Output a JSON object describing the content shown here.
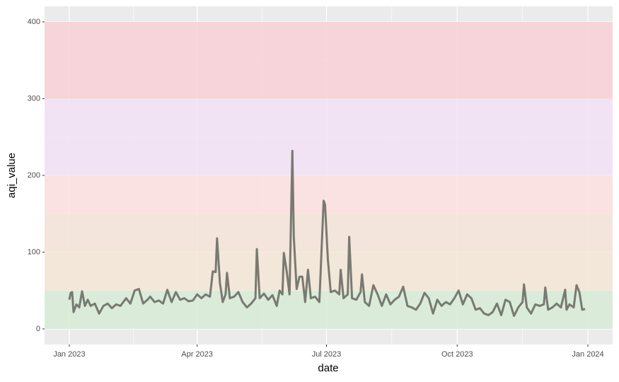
{
  "chart_data": {
    "type": "line",
    "xlabel": "date",
    "ylabel": "aqi_value",
    "x": [
      0,
      1,
      2,
      3,
      5,
      7,
      9,
      11,
      13,
      15,
      18,
      21,
      24,
      27,
      30,
      33,
      36,
      38,
      40,
      43,
      46,
      49,
      52,
      55,
      57,
      60,
      63,
      66,
      69,
      72,
      75,
      78,
      81,
      84,
      87,
      90,
      93,
      96,
      99,
      101,
      103,
      104,
      106,
      108,
      110,
      111,
      113,
      116,
      119,
      122,
      125,
      128,
      131,
      132,
      134,
      137,
      140,
      143,
      146,
      148,
      150,
      151,
      153,
      155,
      157,
      158,
      160,
      162,
      164,
      166,
      168,
      170,
      173,
      176,
      179,
      180,
      182,
      184,
      187,
      190,
      191,
      193,
      196,
      197,
      199,
      202,
      205,
      206,
      208,
      211,
      214,
      217,
      220,
      223,
      226,
      229,
      232,
      235,
      238,
      241,
      244,
      247,
      250,
      253,
      256,
      259,
      262,
      265,
      268,
      271,
      274,
      277,
      280,
      283,
      286,
      289,
      292,
      295,
      298,
      301,
      304,
      307,
      310,
      313,
      316,
      319,
      320,
      322,
      325,
      328,
      331,
      334,
      335,
      337,
      340,
      343,
      346,
      349,
      350,
      352,
      355,
      357,
      359,
      361,
      363
    ],
    "series": [
      {
        "color": "#6b6e66",
        "values": [
          38,
          47,
          48,
          22,
          32,
          28,
          49,
          30,
          38,
          30,
          33,
          20,
          30,
          33,
          27,
          32,
          30,
          35,
          40,
          33,
          50,
          52,
          33,
          38,
          42,
          35,
          37,
          33,
          51,
          35,
          48,
          38,
          40,
          36,
          37,
          45,
          40,
          45,
          42,
          75,
          74,
          118,
          60,
          35,
          45,
          73,
          40,
          42,
          48,
          35,
          28,
          33,
          40,
          104,
          40,
          46,
          38,
          44,
          30,
          50,
          45,
          99,
          75,
          45,
          232,
          120,
          52,
          68,
          68,
          35,
          77,
          40,
          42,
          35,
          167,
          162,
          90,
          48,
          50,
          45,
          77,
          40,
          45,
          120,
          40,
          38,
          48,
          71,
          35,
          30,
          57,
          45,
          30,
          45,
          32,
          38,
          42,
          55,
          30,
          28,
          25,
          33,
          47,
          40,
          20,
          38,
          30,
          35,
          32,
          40,
          50,
          32,
          45,
          40,
          25,
          27,
          20,
          18,
          22,
          33,
          18,
          38,
          35,
          17,
          28,
          35,
          58,
          28,
          20,
          32,
          30,
          32,
          54,
          25,
          28,
          33,
          28,
          51,
          25,
          32,
          28,
          57,
          48,
          25,
          26
        ]
      }
    ],
    "bands": [
      {
        "ymin": 0,
        "ymax": 50,
        "color": "#d7ecd6"
      },
      {
        "ymin": 50,
        "ymax": 100,
        "color": "#f3e6d6"
      },
      {
        "ymin": 100,
        "ymax": 150,
        "color": "#f5e4d8"
      },
      {
        "ymin": 150,
        "ymax": 200,
        "color": "#fde0e1"
      },
      {
        "ymin": 200,
        "ymax": 300,
        "color": "#f2e2f5"
      },
      {
        "ymin": 300,
        "ymax": 400,
        "color": "#f9d0d6"
      }
    ],
    "xlim": [
      -17.4,
      382.4
    ],
    "xticks": [
      {
        "value": 0,
        "label": "Jan 2023"
      },
      {
        "value": 90,
        "label": "Apr 2023"
      },
      {
        "value": 181,
        "label": "Jul 2023"
      },
      {
        "value": 273,
        "label": "Oct 2023"
      },
      {
        "value": 365,
        "label": "Jan 2024"
      }
    ],
    "ylim": [
      -20.3,
      420.2
    ],
    "yticks": [
      0,
      100,
      200,
      300,
      400
    ],
    "grid": true
  }
}
